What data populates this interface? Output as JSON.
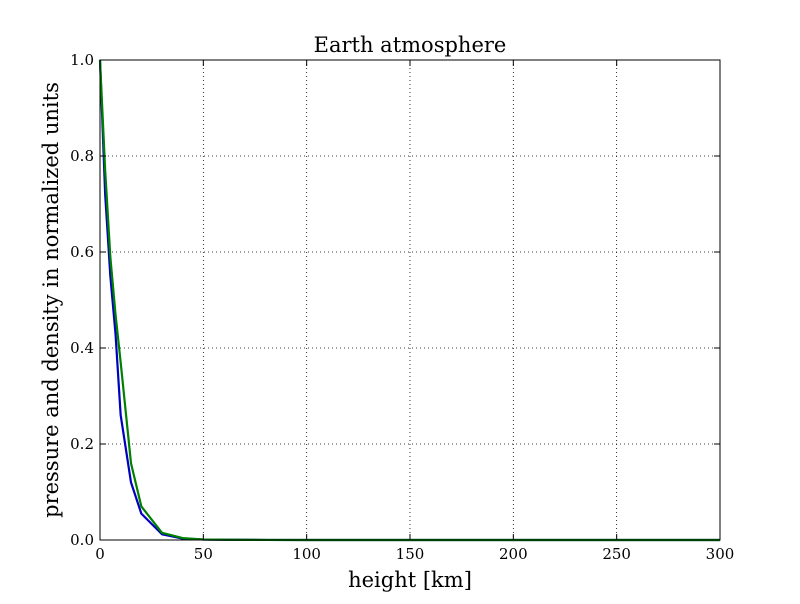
{
  "chart_data": {
    "type": "line",
    "title": "Earth atmosphere",
    "xlabel": "height [km]",
    "ylabel": "pressure and density in normalized units",
    "xlim": [
      0,
      300
    ],
    "ylim": [
      0.0,
      1.0
    ],
    "xticks": [
      0,
      50,
      100,
      150,
      200,
      250,
      300
    ],
    "xtick_labels": [
      "0",
      "50",
      "100",
      "150",
      "200",
      "250",
      "300"
    ],
    "yticks": [
      0.0,
      0.2,
      0.4,
      0.6,
      0.8,
      1.0
    ],
    "ytick_labels": [
      "0.0",
      "0.2",
      "0.4",
      "0.6",
      "0.8",
      "1.0"
    ],
    "grid": true,
    "series": [
      {
        "color": "#0000bf",
        "x": [
          0,
          2.5,
          5,
          7.5,
          10,
          15,
          20,
          30,
          40,
          50,
          60,
          80,
          100,
          150,
          200,
          300
        ],
        "y": [
          1.0,
          0.72,
          0.55,
          0.43,
          0.26,
          0.12,
          0.055,
          0.012,
          0.003,
          0.001,
          0.0005,
          0.0001,
          0.0,
          0.0,
          0.0,
          0.0
        ]
      },
      {
        "color": "#008000",
        "x": [
          0,
          2.5,
          5,
          7.5,
          10,
          15,
          20,
          30,
          40,
          50,
          60,
          80,
          100,
          150,
          200,
          300
        ],
        "y": [
          1.0,
          0.77,
          0.59,
          0.47,
          0.37,
          0.16,
          0.07,
          0.015,
          0.004,
          0.001,
          0.0005,
          0.0001,
          0.0,
          0.0,
          0.0,
          0.0
        ]
      }
    ]
  }
}
